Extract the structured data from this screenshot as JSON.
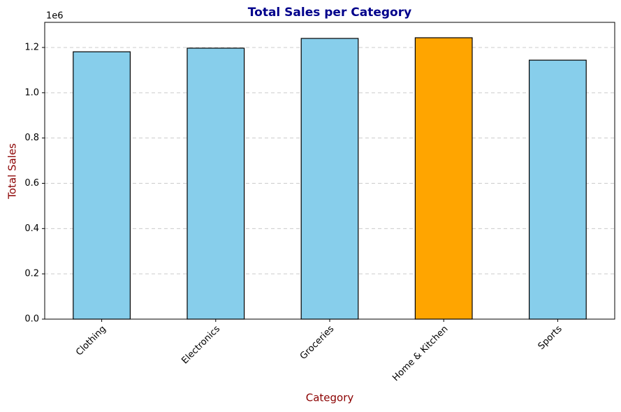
{
  "chart_data": {
    "type": "bar",
    "title": "Total Sales per Category",
    "x_label": "Category",
    "y_label": "Total Sales",
    "y_offset_label": "1e6",
    "categories": [
      "Clothing",
      "Electronics",
      "Groceries",
      "Home & Kitchen",
      "Sports"
    ],
    "values": [
      1.181,
      1.197,
      1.24,
      1.243,
      1.144
    ],
    "colors": [
      "#87ceeb",
      "#87ceeb",
      "#87ceeb",
      "#ffa500",
      "#87ceeb"
    ],
    "ylim": [
      0,
      1.311
    ],
    "yticks": [
      {
        "value": 0,
        "label": "0.0"
      },
      {
        "value": 0.2,
        "label": "0.2"
      },
      {
        "value": 0.4,
        "label": "0.4"
      },
      {
        "value": 0.6,
        "label": "0.6"
      },
      {
        "value": 0.8,
        "label": "0.8"
      },
      {
        "value": 1.0,
        "label": "1.0"
      },
      {
        "value": 1.2,
        "label": "1.2"
      }
    ],
    "grid": true
  }
}
